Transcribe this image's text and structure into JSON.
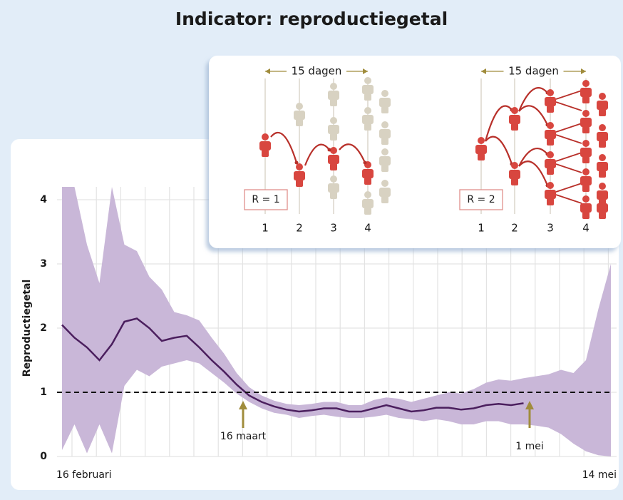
{
  "chart_data": {
    "type": "band-line",
    "title": "Indicator: reproductiegetal",
    "y_label": "Reproductiegetal",
    "categories": [
      "16 februari",
      null,
      null,
      null,
      null,
      null,
      null,
      null,
      null,
      null,
      null,
      null,
      null,
      null,
      null,
      null,
      null,
      null,
      null,
      null,
      null,
      null,
      null,
      null,
      null,
      null,
      null,
      null,
      null,
      null,
      null,
      null,
      null,
      null,
      null,
      null,
      null,
      null,
      null,
      null,
      null,
      null,
      null,
      null,
      "14 mei"
    ],
    "series": [
      {
        "color": "#4b1f5e",
        "values": [
          2.05,
          1.85,
          1.7,
          1.5,
          1.75,
          2.1,
          2.15,
          2.0,
          1.8,
          1.85,
          1.88,
          1.7,
          1.5,
          1.32,
          1.12,
          0.95,
          0.85,
          0.78,
          0.73,
          0.7,
          0.72,
          0.75,
          0.75,
          0.7,
          0.7,
          0.75,
          0.8,
          0.75,
          0.7,
          0.72,
          0.76,
          0.76,
          0.73,
          0.75,
          0.8,
          0.82,
          0.8,
          0.83,
          null,
          null,
          null,
          null,
          null,
          null,
          null
        ]
      }
    ],
    "band": {
      "color": "#c9b7d8",
      "lower": [
        0.1,
        0.5,
        0.05,
        0.5,
        0.05,
        1.1,
        1.35,
        1.25,
        1.4,
        1.45,
        1.5,
        1.45,
        1.3,
        1.15,
        0.98,
        0.85,
        0.75,
        0.68,
        0.65,
        0.6,
        0.63,
        0.65,
        0.62,
        0.6,
        0.6,
        0.62,
        0.65,
        0.6,
        0.58,
        0.55,
        0.58,
        0.55,
        0.5,
        0.5,
        0.55,
        0.55,
        0.5,
        0.5,
        0.48,
        0.45,
        0.35,
        0.2,
        0.08,
        0.02,
        0.0
      ],
      "upper": [
        4.2,
        4.2,
        3.3,
        2.7,
        4.2,
        3.3,
        3.2,
        2.8,
        2.6,
        2.25,
        2.2,
        2.12,
        1.85,
        1.6,
        1.3,
        1.08,
        0.95,
        0.87,
        0.82,
        0.8,
        0.82,
        0.85,
        0.85,
        0.8,
        0.8,
        0.88,
        0.92,
        0.9,
        0.85,
        0.9,
        0.95,
        1.0,
        0.98,
        1.05,
        1.15,
        1.2,
        1.18,
        1.22,
        1.25,
        1.28,
        1.35,
        1.3,
        1.5,
        2.3,
        3.0
      ]
    },
    "ylim": [
      0,
      4.2
    ],
    "yticks": [
      0,
      1,
      2,
      3,
      4
    ],
    "grid": true,
    "hline": 1,
    "annotations": [
      {
        "text": "16 maart"
      },
      {
        "text": "1 mei"
      }
    ]
  },
  "inset": {
    "left": {
      "span": "15 dagen",
      "r_label": "R = 1",
      "steps": [
        "1",
        "2",
        "3",
        "4"
      ]
    },
    "right": {
      "span": "15 dagen",
      "r_label": "R = 2",
      "steps": [
        "1",
        "2",
        "3",
        "4"
      ]
    }
  }
}
